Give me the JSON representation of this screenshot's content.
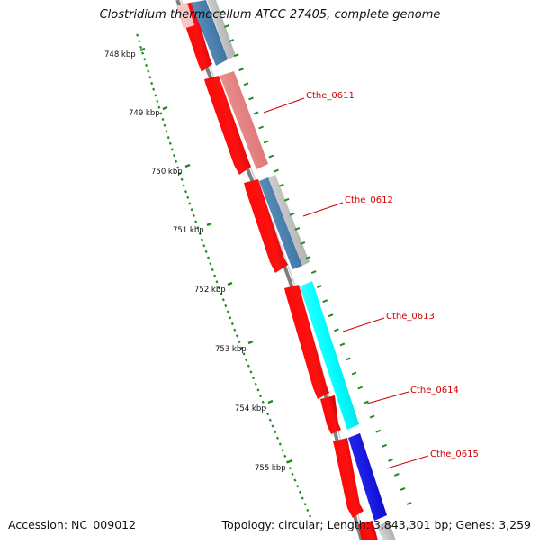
{
  "header": {
    "title": "Clostridium thermocellum ATCC 27405, complete genome"
  },
  "footer": {
    "accession": "Accession: NC_009012",
    "topology": "Topology: circular; Length: 3,843,301 bp; Genes: 3,259"
  },
  "ruler": {
    "tick_labels": [
      "748 kbp",
      "749 kbp",
      "750 kbp",
      "751 kbp",
      "752 kbp",
      "753 kbp",
      "754 kbp",
      "755 kbp"
    ]
  },
  "genes": [
    {
      "name": "Cthe_0611"
    },
    {
      "name": "Cthe_0612"
    },
    {
      "name": "Cthe_0613"
    },
    {
      "name": "Cthe_0614"
    },
    {
      "name": "Cthe_0615"
    }
  ],
  "colors": {
    "backbone": "#808080",
    "cds_red": "#ff0000",
    "salmon": "#f08080",
    "steel_blue": "#4682b4",
    "cyan": "#00ffff",
    "blue": "#0000ff",
    "grey_feature": "#b8b8b8",
    "tick_green": "#228b22",
    "label_red": "#cc0000"
  }
}
